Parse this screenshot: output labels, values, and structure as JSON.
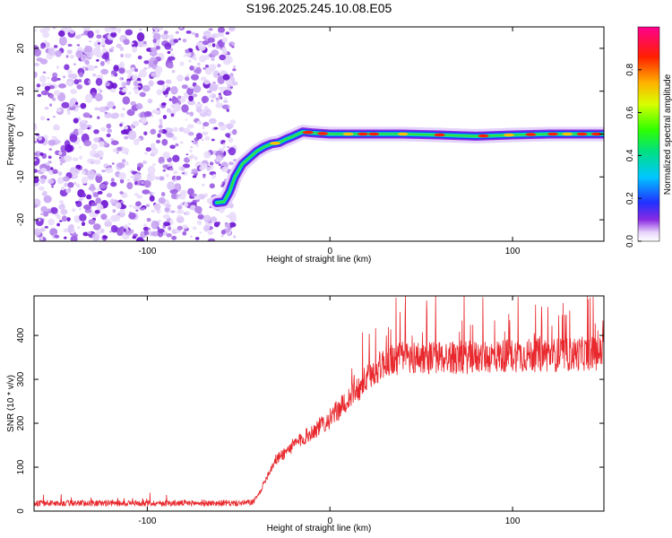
{
  "title": "S196.2025.245.10.08.E05",
  "colors": {
    "noise": "#8a2be2",
    "snr_line": "#e8282d",
    "frame": "#000000"
  },
  "chart_data": [
    {
      "type": "heatmap",
      "name": "spectrogram",
      "title": "S196.2025.245.10.08.E05",
      "xlabel": "Height of straight line (km)",
      "ylabel": "Frequency (Hz)",
      "xlim": [
        -162,
        150
      ],
      "ylim": [
        -25,
        25
      ],
      "xticks": [
        -100,
        0,
        100
      ],
      "yticks": [
        -20,
        -10,
        0,
        10,
        20
      ],
      "noise_region_x": [
        -162,
        -52
      ],
      "signal_track": {
        "x": [
          -62,
          -58,
          -55,
          -52,
          -48,
          -44,
          -40,
          -36,
          -32,
          -28,
          -24,
          -20,
          -15,
          -10,
          0,
          20,
          40,
          60,
          80,
          100,
          120,
          150
        ],
        "frequency": [
          -16,
          -15.8,
          -13.5,
          -10,
          -7,
          -5.5,
          -4,
          -3,
          -2.3,
          -2,
          -1.2,
          -0.5,
          0.5,
          0.3,
          0,
          0,
          0,
          -0.2,
          -0.5,
          -0.2,
          0,
          0
        ]
      }
    },
    {
      "type": "colorbar",
      "name": "spectral-amplitude-colorbar",
      "label": "Normalized spectral amplitude",
      "range": [
        0.0,
        1.0
      ],
      "ticks": [
        "0.0",
        "0.2",
        "0.4",
        "0.6",
        "0.8"
      ]
    },
    {
      "type": "line",
      "name": "snr",
      "xlabel": "Height of straight line (km)",
      "ylabel": "SNR (10 * v/v)",
      "xlim": [
        -162,
        150
      ],
      "ylim": [
        0,
        490
      ],
      "xticks": [
        -100,
        0,
        100
      ],
      "yticks": [
        0,
        100,
        200,
        300,
        400
      ],
      "envelope": {
        "x": [
          -162,
          -50,
          -42,
          -38,
          -35,
          -30,
          -20,
          -10,
          0,
          10,
          20,
          25,
          30,
          40,
          60,
          80,
          100,
          120,
          150
        ],
        "y": [
          18,
          18,
          20,
          45,
          75,
          115,
          150,
          180,
          210,
          255,
          300,
          320,
          340,
          350,
          350,
          350,
          355,
          355,
          360
        ]
      }
    }
  ]
}
